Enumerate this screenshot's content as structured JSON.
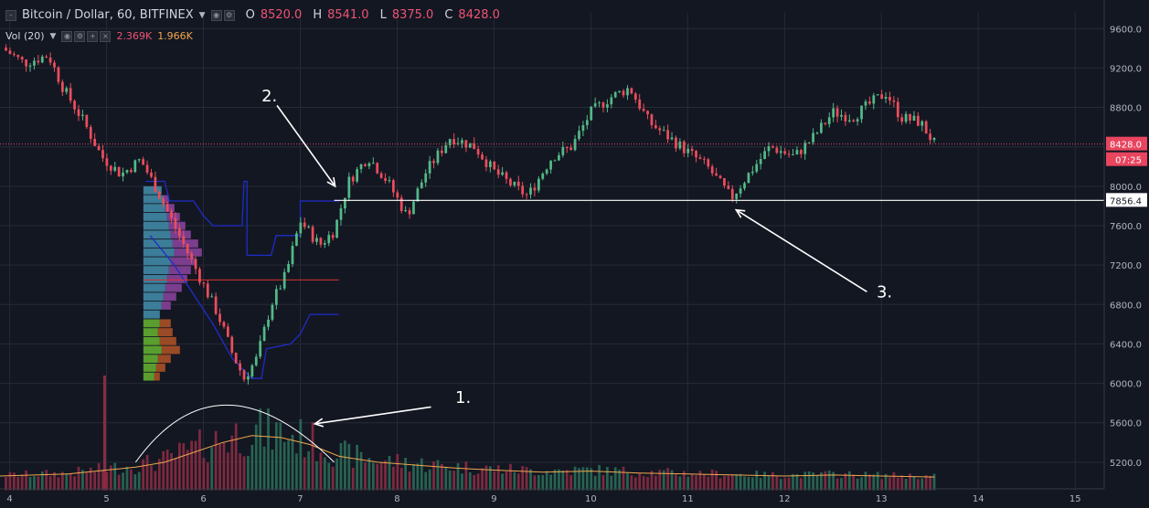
{
  "header": {
    "symbol": "Bitcoin / Dollar, 60, BITFINEX",
    "ohlc": [
      {
        "label": "O",
        "value": "8520.0"
      },
      {
        "label": "H",
        "value": "8541.0"
      },
      {
        "label": "L",
        "value": "8375.0"
      },
      {
        "label": "C",
        "value": "8428.0"
      }
    ]
  },
  "volume_indicator": {
    "label": "Vol (20)",
    "value_a": "2.369K",
    "value_b": "1.966K"
  },
  "colors": {
    "up": "#53b987",
    "down": "#eb4d5c",
    "background": "#131722",
    "grid": "#262a36",
    "volume_up": "#2a6b57",
    "volume_down": "#8b2b43",
    "volume_ma": "#f0a64d",
    "profile_blue": "#3c7d99",
    "profile_purple": "#7b3d8e",
    "profile_green": "#5a9e2f",
    "profile_brown": "#9b4a26",
    "channel": "#1f2cc8",
    "annotation": "#ffffff",
    "last_price": "#e8455f"
  },
  "chart_data": {
    "type": "candlestick",
    "title": "Bitcoin / Dollar, 60, BITFINEX",
    "xlabel": "",
    "ylabel": "",
    "y_ticks": [
      "9600.0",
      "9200.0",
      "8800.0",
      "8400.0",
      "8000.0",
      "7600.0",
      "7200.0",
      "6800.0",
      "6400.0",
      "6000.0",
      "5600.0",
      "5200.0"
    ],
    "x_ticks": [
      "4",
      "5",
      "6",
      "7",
      "8",
      "9",
      "10",
      "11",
      "12",
      "13",
      "14",
      "15"
    ],
    "xlim": [
      3.9,
      15.3
    ],
    "ylim": [
      4930,
      9760
    ],
    "grid": true,
    "price_path": [
      {
        "day": 3.9,
        "price": 9420
      },
      {
        "day": 4.15,
        "price": 9250
      },
      {
        "day": 4.4,
        "price": 9330
      },
      {
        "day": 4.55,
        "price": 9000
      },
      {
        "day": 4.75,
        "price": 8680
      },
      {
        "day": 4.95,
        "price": 8300
      },
      {
        "day": 5.15,
        "price": 8120
      },
      {
        "day": 5.35,
        "price": 8270
      },
      {
        "day": 5.5,
        "price": 8000
      },
      {
        "day": 5.7,
        "price": 7600
      },
      {
        "day": 5.85,
        "price": 7300
      },
      {
        "day": 6.0,
        "price": 7000
      },
      {
        "day": 6.15,
        "price": 6700
      },
      {
        "day": 6.3,
        "price": 6300
      },
      {
        "day": 6.42,
        "price": 6050
      },
      {
        "day": 6.55,
        "price": 6250
      },
      {
        "day": 6.7,
        "price": 6800
      },
      {
        "day": 6.85,
        "price": 7100
      },
      {
        "day": 7.0,
        "price": 7650
      },
      {
        "day": 7.2,
        "price": 7400
      },
      {
        "day": 7.35,
        "price": 7550
      },
      {
        "day": 7.5,
        "price": 8050
      },
      {
        "day": 7.7,
        "price": 8300
      },
      {
        "day": 7.9,
        "price": 8050
      },
      {
        "day": 8.1,
        "price": 7700
      },
      {
        "day": 8.3,
        "price": 8150
      },
      {
        "day": 8.55,
        "price": 8500
      },
      {
        "day": 8.8,
        "price": 8400
      },
      {
        "day": 9.0,
        "price": 8150
      },
      {
        "day": 9.2,
        "price": 8000
      },
      {
        "day": 9.35,
        "price": 7900
      },
      {
        "day": 9.6,
        "price": 8300
      },
      {
        "day": 9.8,
        "price": 8400
      },
      {
        "day": 10.0,
        "price": 8750
      },
      {
        "day": 10.2,
        "price": 8900
      },
      {
        "day": 10.4,
        "price": 9000
      },
      {
        "day": 10.6,
        "price": 8650
      },
      {
        "day": 10.8,
        "price": 8500
      },
      {
        "day": 11.0,
        "price": 8350
      },
      {
        "day": 11.2,
        "price": 8200
      },
      {
        "day": 11.45,
        "price": 7880
      },
      {
        "day": 11.65,
        "price": 8150
      },
      {
        "day": 11.85,
        "price": 8400
      },
      {
        "day": 12.1,
        "price": 8300
      },
      {
        "day": 12.3,
        "price": 8500
      },
      {
        "day": 12.5,
        "price": 8750
      },
      {
        "day": 12.7,
        "price": 8700
      },
      {
        "day": 12.9,
        "price": 8850
      },
      {
        "day": 13.05,
        "price": 8950
      },
      {
        "day": 13.2,
        "price": 8700
      },
      {
        "day": 13.4,
        "price": 8650
      },
      {
        "day": 13.55,
        "price": 8428
      }
    ],
    "volume_ma_path": [
      {
        "day": 3.9,
        "value": 5060
      },
      {
        "day": 4.6,
        "value": 5080
      },
      {
        "day": 5.0,
        "value": 5120
      },
      {
        "day": 5.3,
        "value": 5150
      },
      {
        "day": 5.6,
        "value": 5200
      },
      {
        "day": 5.9,
        "value": 5300
      },
      {
        "day": 6.2,
        "value": 5400
      },
      {
        "day": 6.5,
        "value": 5470
      },
      {
        "day": 6.8,
        "value": 5450
      },
      {
        "day": 7.1,
        "value": 5380
      },
      {
        "day": 7.4,
        "value": 5260
      },
      {
        "day": 7.8,
        "value": 5200
      },
      {
        "day": 8.2,
        "value": 5170
      },
      {
        "day": 8.6,
        "value": 5140
      },
      {
        "day": 9.0,
        "value": 5120
      },
      {
        "day": 9.5,
        "value": 5100
      },
      {
        "day": 10.0,
        "value": 5110
      },
      {
        "day": 10.5,
        "value": 5090
      },
      {
        "day": 11.0,
        "value": 5080
      },
      {
        "day": 11.5,
        "value": 5070
      },
      {
        "day": 12.0,
        "value": 5060
      },
      {
        "day": 12.5,
        "value": 5070
      },
      {
        "day": 13.0,
        "value": 5060
      },
      {
        "day": 13.55,
        "value": 5050
      }
    ],
    "horizontal_levels": [
      {
        "price": 8428,
        "style": "dotted",
        "label": "8428.0",
        "badge": "07:25"
      },
      {
        "price": 7856.4,
        "style": "solid",
        "label": "7856.4"
      }
    ],
    "annotations": [
      {
        "text": "1.",
        "day": 8.0,
        "price": 5200
      },
      {
        "text": "2.",
        "day": 7.42,
        "price": 8050
      },
      {
        "text": "3.",
        "day": 11.5,
        "price": 7800
      }
    ]
  }
}
